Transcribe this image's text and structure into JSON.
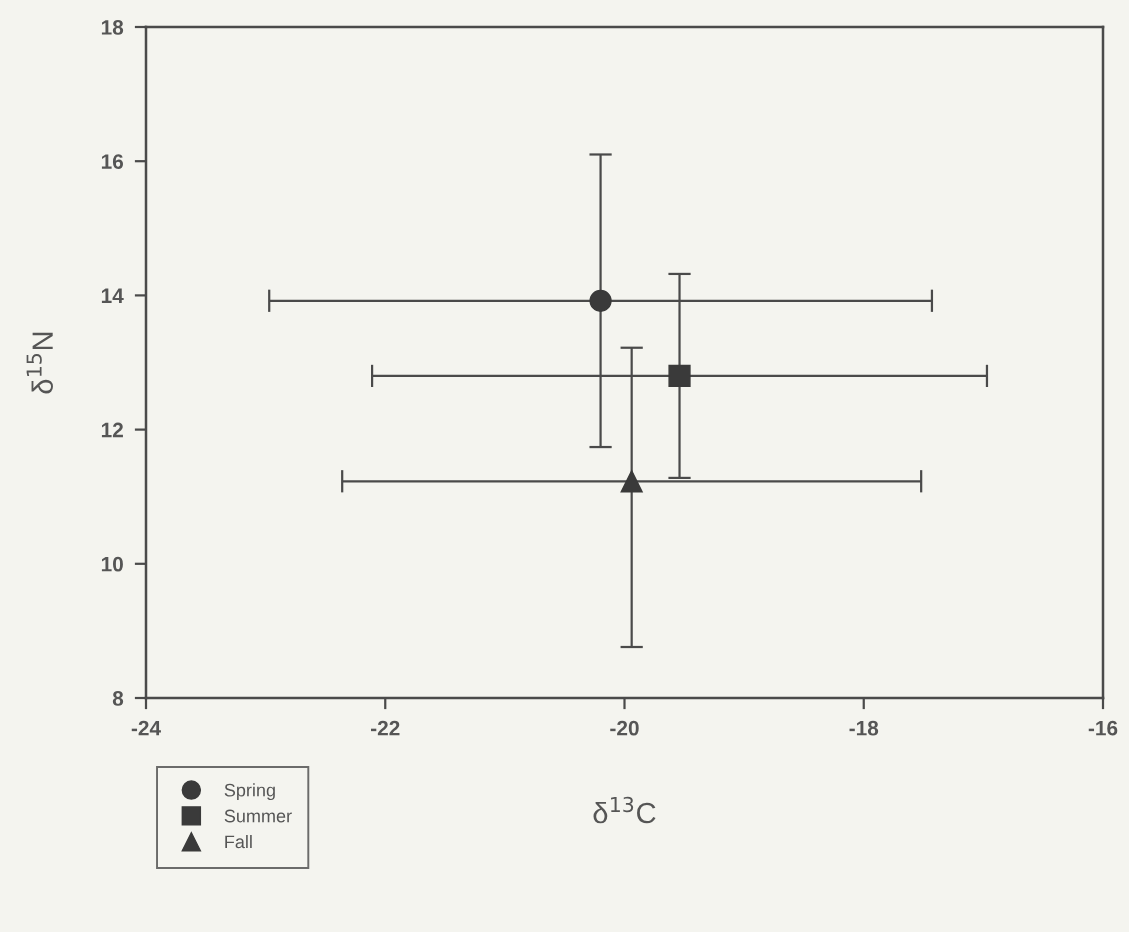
{
  "chart_data": {
    "type": "scatter",
    "xlabel": "δ$^{13}$C",
    "ylabel": "δ$^{15}$N",
    "xlim": [
      -24,
      -16
    ],
    "xticks": [
      -24,
      -22,
      -20,
      -18,
      -16
    ],
    "ylim": [
      8,
      18
    ],
    "yticks": [
      8,
      10,
      12,
      14,
      16,
      18
    ],
    "grid": false,
    "legend": "bottom left",
    "series": [
      {
        "name": "Spring",
        "color": "#3a3a3a",
        "marker": "circle",
        "x": [
          -20.2
        ],
        "values": [
          13.92
        ],
        "errors": [
          2.18
        ],
        "xerrors": [
          2.77
        ]
      },
      {
        "name": "Summer",
        "color": "#3a3a3a",
        "marker": "square",
        "x": [
          -19.54
        ],
        "values": [
          12.8
        ],
        "errors": [
          1.52
        ],
        "xerrors": [
          2.57
        ]
      },
      {
        "name": "Fall",
        "color": "#3a3a3a",
        "marker": "triangle",
        "x": [
          -19.94
        ],
        "values": [
          11.23
        ],
        "errors": [
          [
            8.76,
            13.22
          ]
        ],
        "xerrors": [
          [
            -22.36,
            -17.52
          ]
        ]
      }
    ]
  }
}
